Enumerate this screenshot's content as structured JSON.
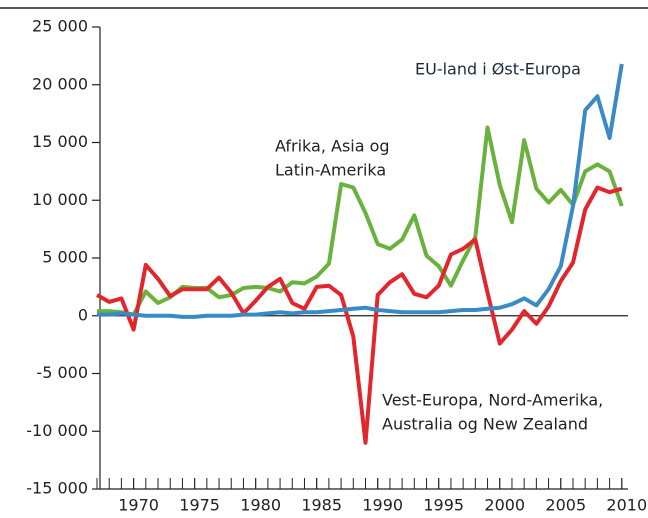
{
  "chart_data": {
    "type": "line",
    "xlim": [
      1967,
      2011
    ],
    "xticks": [
      1970,
      1975,
      1980,
      1985,
      1990,
      1995,
      2000,
      2005,
      2010
    ],
    "ylim": [
      -15000,
      25000
    ],
    "yticks": [
      {
        "value": -15000,
        "label": "-15 000"
      },
      {
        "value": -10000,
        "label": "-10 000"
      },
      {
        "value": -5000,
        "label": "-5 000"
      },
      0,
      {
        "value": 5000,
        "label": "5 000"
      },
      {
        "value": 10000,
        "label": "10 000"
      },
      {
        "value": 15000,
        "label": "15 000"
      },
      {
        "value": 20000,
        "label": "20 000"
      },
      {
        "value": 25000,
        "label": "25 000"
      }
    ],
    "x": [
      1967,
      1968,
      1969,
      1970,
      1971,
      1972,
      1973,
      1974,
      1975,
      1976,
      1977,
      1978,
      1979,
      1980,
      1981,
      1982,
      1983,
      1984,
      1985,
      1986,
      1987,
      1988,
      1989,
      1990,
      1991,
      1992,
      1993,
      1994,
      1995,
      1996,
      1997,
      1998,
      1999,
      2000,
      2001,
      2002,
      2003,
      2004,
      2005,
      2006,
      2007,
      2008,
      2009,
      2010
    ],
    "series": [
      {
        "name": [
          "Afrika, Asia og",
          "Latin-Amerika"
        ],
        "color": "#6ab23e",
        "values": [
          400,
          400,
          300,
          100,
          2100,
          1100,
          1600,
          2500,
          2400,
          2400,
          1600,
          1800,
          2400,
          2500,
          2400,
          2100,
          2900,
          2800,
          3400,
          4500,
          11400,
          11100,
          8900,
          6200,
          5800,
          6600,
          8700,
          5200,
          4300,
          2600,
          4800,
          6800,
          16300,
          11300,
          8100,
          15200,
          11000,
          9800,
          10900,
          9600,
          12500,
          13100,
          12500,
          9500
        ]
      },
      {
        "name": [
          "Vest-Europa, Nord-Amerika,",
          "Australia og New Zealand"
        ],
        "color": "#e3262b",
        "values": [
          1800,
          1200,
          1500,
          -1200,
          4400,
          3200,
          1700,
          2300,
          2300,
          2300,
          3300,
          2000,
          200,
          1300,
          2500,
          3200,
          1100,
          600,
          2500,
          2600,
          1800,
          -1800,
          -11000,
          1800,
          2900,
          3600,
          1900,
          1600,
          2600,
          5300,
          5800,
          6600,
          2000,
          -2400,
          -1200,
          400,
          -700,
          800,
          3000,
          4600,
          9200,
          11100,
          10700,
          11000
        ]
      },
      {
        "name": [
          "EU-land i Øst-Europa"
        ],
        "color": "#3a8ac6",
        "values": [
          100,
          100,
          200,
          100,
          0,
          0,
          0,
          -100,
          -100,
          0,
          0,
          0,
          100,
          100,
          200,
          300,
          200,
          300,
          300,
          400,
          500,
          600,
          700,
          500,
          400,
          300,
          300,
          300,
          300,
          400,
          500,
          500,
          600,
          700,
          1000,
          1500,
          900,
          2300,
          4300,
          9500,
          17800,
          19000,
          15400,
          21800
        ]
      }
    ]
  }
}
